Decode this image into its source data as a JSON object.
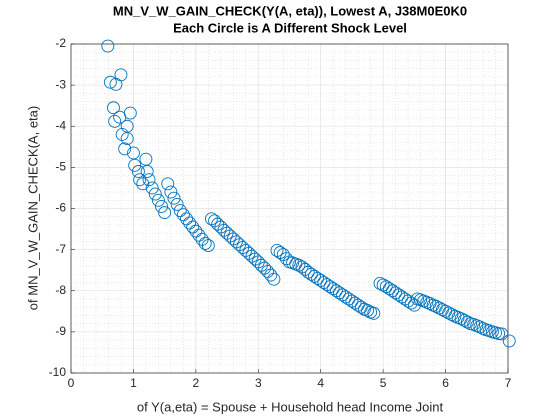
{
  "chart_data": {
    "type": "scatter",
    "title": "MN_V_W_GAIN_CHECK(Y(A, eta)), Lowest A, J38M0E0K0",
    "subtitle": "Each Circle is A Different Shock Level",
    "xlabel": "of Y(a,eta) = Spouse + Household head Income Joint",
    "ylabel": "of MN_V_W_GAIN_CHECK(A, eta)",
    "color": "#0072bd",
    "grid": true,
    "minor_grid": true,
    "xlim": [
      0,
      7
    ],
    "xticks": [
      0,
      1,
      2,
      3,
      4,
      5,
      6,
      7
    ],
    "ylim": [
      -10,
      -2
    ],
    "yticks": [
      -10,
      -9,
      -8,
      -7,
      -6,
      -5,
      -4,
      -3,
      -2
    ],
    "x": [
      0.59,
      0.63,
      0.72,
      0.8,
      0.68,
      0.7,
      0.78,
      0.82,
      0.9,
      0.95,
      0.9,
      0.86,
      1.0,
      1.02,
      1.08,
      1.1,
      1.15,
      1.2,
      1.22,
      1.25,
      1.3,
      1.35,
      1.4,
      1.45,
      1.5,
      1.55,
      1.6,
      1.65,
      1.7,
      1.75,
      1.8,
      1.85,
      1.9,
      1.95,
      2.0,
      2.05,
      2.1,
      2.15,
      2.2,
      2.25,
      2.3,
      2.35,
      2.4,
      2.45,
      2.5,
      2.55,
      2.6,
      2.65,
      2.7,
      2.75,
      2.8,
      2.85,
      2.9,
      2.95,
      3.0,
      3.05,
      3.1,
      3.15,
      3.2,
      3.25,
      3.3,
      3.35,
      3.4,
      3.45,
      3.5,
      3.55,
      3.6,
      3.65,
      3.7,
      3.75,
      3.8,
      3.85,
      3.9,
      3.95,
      4.0,
      4.05,
      4.1,
      4.15,
      4.2,
      4.25,
      4.3,
      4.35,
      4.4,
      4.45,
      4.5,
      4.55,
      4.6,
      4.65,
      4.7,
      4.75,
      4.8,
      4.85,
      4.95,
      5.0,
      5.05,
      5.1,
      5.15,
      5.2,
      5.25,
      5.3,
      5.35,
      5.4,
      5.45,
      5.5,
      5.55,
      5.6,
      5.65,
      5.7,
      5.75,
      5.8,
      5.85,
      5.9,
      5.95,
      6.0,
      6.05,
      6.1,
      6.15,
      6.2,
      6.25,
      6.3,
      6.35,
      6.4,
      6.45,
      6.5,
      6.55,
      6.6,
      6.65,
      6.7,
      6.75,
      6.8,
      6.85,
      6.9,
      7.02
    ],
    "values": [
      -2.05,
      -2.93,
      -2.98,
      -2.75,
      -3.55,
      -3.88,
      -3.78,
      -4.2,
      -4.0,
      -3.68,
      -4.3,
      -4.55,
      -4.65,
      -4.95,
      -5.1,
      -5.3,
      -5.4,
      -4.8,
      -5.1,
      -5.3,
      -5.5,
      -5.65,
      -5.8,
      -5.95,
      -6.1,
      -5.4,
      -5.6,
      -5.75,
      -5.9,
      -6.05,
      -6.15,
      -6.25,
      -6.35,
      -6.45,
      -6.55,
      -6.65,
      -6.75,
      -6.85,
      -6.9,
      -6.25,
      -6.3,
      -6.38,
      -6.45,
      -6.53,
      -6.6,
      -6.67,
      -6.74,
      -6.81,
      -6.88,
      -6.95,
      -7.02,
      -7.09,
      -7.16,
      -7.23,
      -7.3,
      -7.38,
      -7.45,
      -7.53,
      -7.62,
      -7.72,
      -7.02,
      -7.07,
      -7.12,
      -7.22,
      -7.3,
      -7.32,
      -7.35,
      -7.38,
      -7.42,
      -7.48,
      -7.55,
      -7.6,
      -7.65,
      -7.7,
      -7.75,
      -7.8,
      -7.85,
      -7.9,
      -7.95,
      -8.0,
      -8.05,
      -8.1,
      -8.15,
      -8.2,
      -8.25,
      -8.3,
      -8.35,
      -8.4,
      -8.45,
      -8.48,
      -8.52,
      -8.55,
      -7.82,
      -7.86,
      -7.9,
      -7.95,
      -8.0,
      -8.05,
      -8.1,
      -8.15,
      -8.2,
      -8.25,
      -8.3,
      -8.35,
      -8.2,
      -8.22,
      -8.25,
      -8.28,
      -8.31,
      -8.35,
      -8.38,
      -8.42,
      -8.46,
      -8.5,
      -8.54,
      -8.58,
      -8.62,
      -8.65,
      -8.68,
      -8.72,
      -8.76,
      -8.8,
      -8.82,
      -8.85,
      -8.88,
      -8.92,
      -8.95,
      -8.97,
      -9.0,
      -9.02,
      -9.04,
      -9.05,
      -9.22
    ]
  }
}
